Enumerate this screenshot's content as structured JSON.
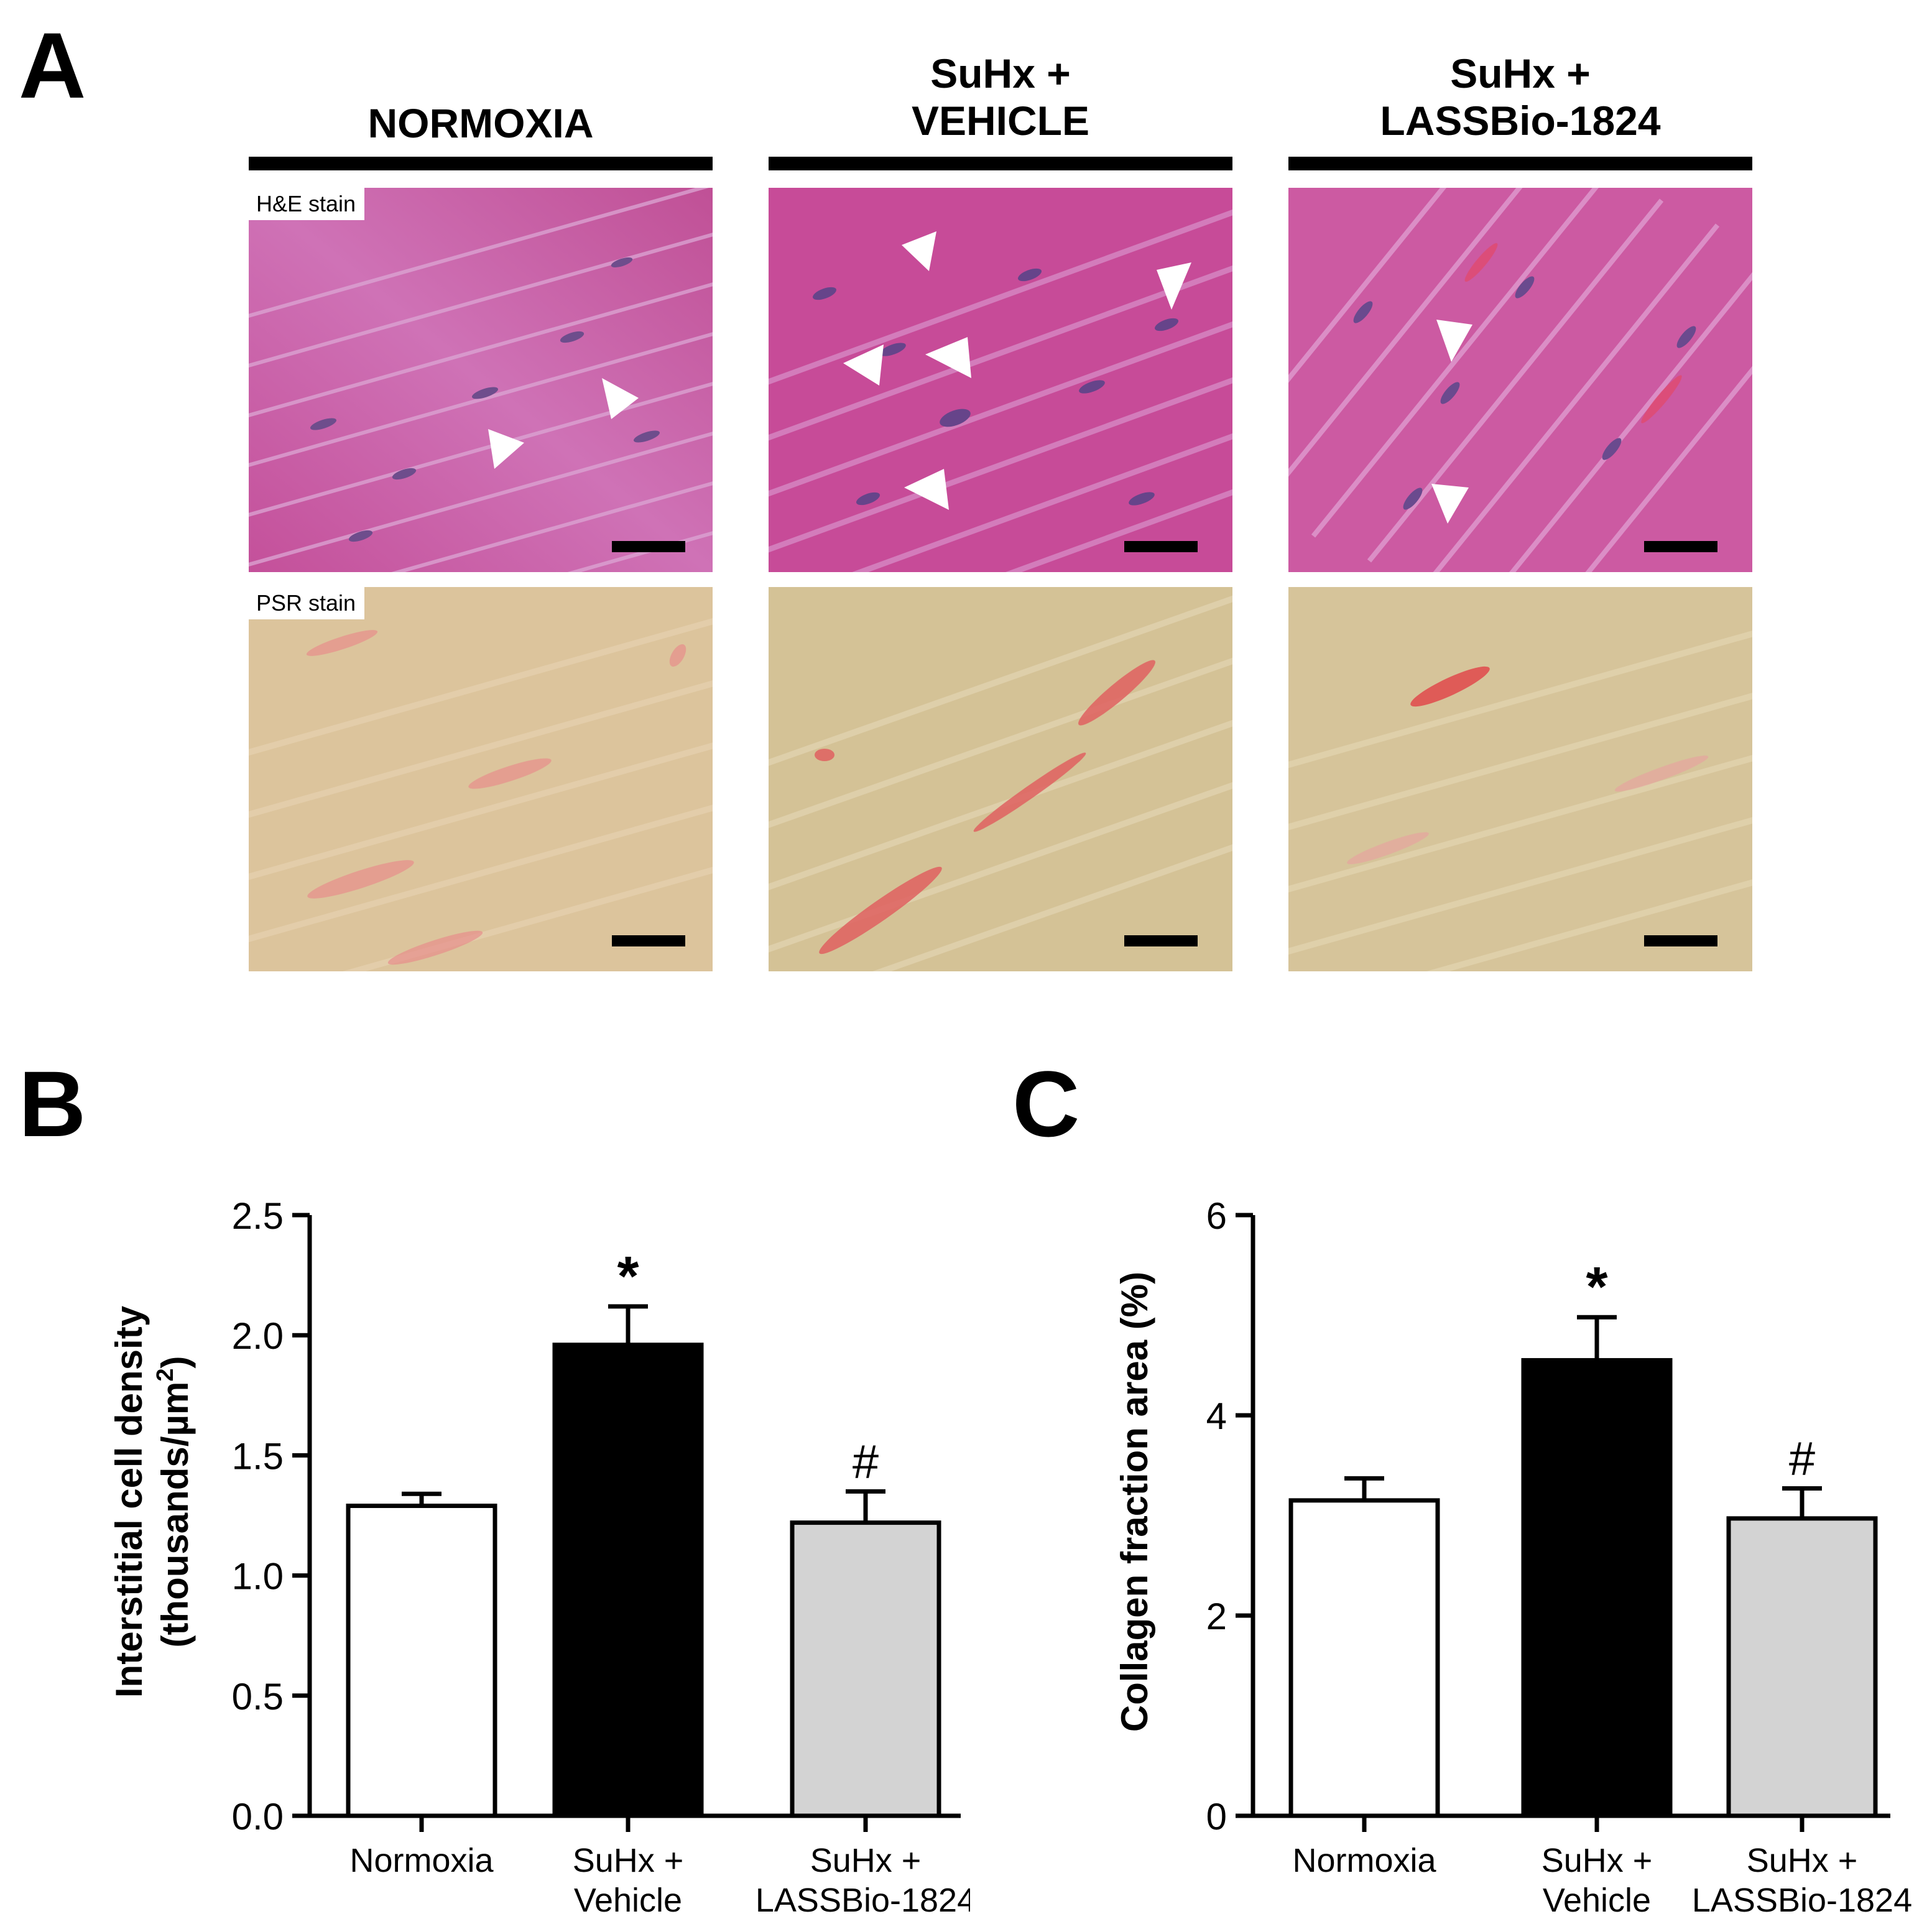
{
  "panels": {
    "a": {
      "letter": "A"
    },
    "b": {
      "letter": "B"
    },
    "c": {
      "letter": "C"
    }
  },
  "groups": [
    {
      "line1": "",
      "line2": "NORMOXIA"
    },
    {
      "line1": "SuHx +",
      "line2": "VEHICLE"
    },
    {
      "line1": "SuHx +",
      "line2": "LASSBio-1824"
    }
  ],
  "stains": {
    "he": "H&E stain",
    "psr": "PSR stain"
  },
  "colors": {
    "he_base": "#c7509c",
    "he_light": "#d690c8",
    "he_nucleus": "#6a4a8a",
    "psr_base": "#d8c298",
    "psr_red": "#e07070",
    "arrowhead": "#ffffff",
    "bar_normoxia": "#ffffff",
    "bar_vehicle": "#000000",
    "bar_lassbio": "#d3d3d3"
  },
  "chart_data": [
    {
      "id": "B",
      "type": "bar",
      "categories": [
        [
          "Normoxia"
        ],
        [
          "SuHx +",
          "Vehicle"
        ],
        [
          "SuHx +",
          "LASSBio-1824"
        ]
      ],
      "values": [
        1.29,
        1.96,
        1.22
      ],
      "errors": [
        0.05,
        0.16,
        0.13
      ],
      "annotations": [
        "",
        "*",
        "#"
      ],
      "ylabel_line1": "Interstitial cell density",
      "ylabel_line2": "(thousands/µm",
      "ylabel_sup": "2",
      "ylabel_end": ")",
      "ylim": [
        0,
        2.5
      ],
      "yticks": [
        "0.0",
        "0.5",
        "1.0",
        "1.5",
        "2.0",
        "2.5"
      ],
      "ytick_values": [
        0,
        0.5,
        1.0,
        1.5,
        2.0,
        2.5
      ]
    },
    {
      "id": "C",
      "type": "bar",
      "categories": [
        [
          "Normoxia"
        ],
        [
          "SuHx +",
          "Vehicle"
        ],
        [
          "SuHx +",
          "LASSBio-1824"
        ]
      ],
      "values": [
        3.15,
        4.55,
        2.97
      ],
      "errors": [
        0.22,
        0.43,
        0.3
      ],
      "annotations": [
        "",
        "*",
        "#"
      ],
      "ylabel_line1": "Collagen fraction area (%)",
      "ylim": [
        0,
        6
      ],
      "yticks": [
        "0",
        "2",
        "4",
        "6"
      ],
      "ytick_values": [
        0,
        2,
        4,
        6
      ]
    }
  ]
}
